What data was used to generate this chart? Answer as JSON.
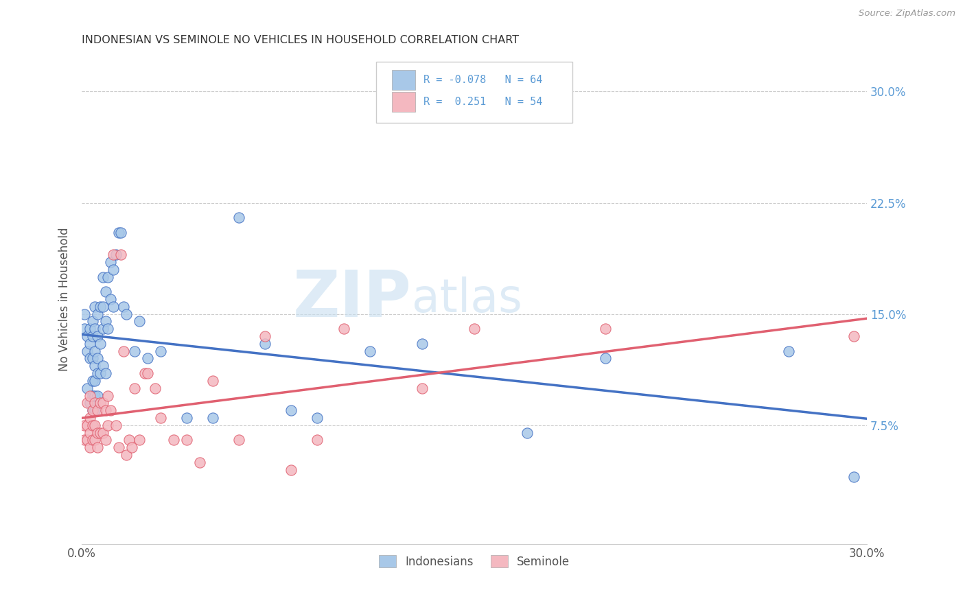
{
  "title": "INDONESIAN VS SEMINOLE NO VEHICLES IN HOUSEHOLD CORRELATION CHART",
  "source": "Source: ZipAtlas.com",
  "ylabel": "No Vehicles in Household",
  "yticks_labels": [
    "7.5%",
    "15.0%",
    "22.5%",
    "30.0%"
  ],
  "ytick_vals": [
    0.075,
    0.15,
    0.225,
    0.3
  ],
  "xlim": [
    0.0,
    0.3
  ],
  "ylim": [
    -0.005,
    0.325
  ],
  "color_indonesian": "#a8c8e8",
  "color_seminole": "#f4b8c0",
  "color_indonesian_line": "#4472c4",
  "color_seminole_line": "#e06070",
  "background_color": "#ffffff",
  "indonesian_x": [
    0.001,
    0.001,
    0.002,
    0.002,
    0.002,
    0.003,
    0.003,
    0.003,
    0.003,
    0.004,
    0.004,
    0.004,
    0.004,
    0.004,
    0.004,
    0.005,
    0.005,
    0.005,
    0.005,
    0.005,
    0.005,
    0.005,
    0.006,
    0.006,
    0.006,
    0.006,
    0.006,
    0.007,
    0.007,
    0.007,
    0.008,
    0.008,
    0.008,
    0.008,
    0.009,
    0.009,
    0.009,
    0.01,
    0.01,
    0.011,
    0.011,
    0.012,
    0.012,
    0.013,
    0.014,
    0.015,
    0.016,
    0.017,
    0.02,
    0.022,
    0.025,
    0.03,
    0.04,
    0.05,
    0.06,
    0.07,
    0.08,
    0.09,
    0.11,
    0.13,
    0.17,
    0.2,
    0.27,
    0.295
  ],
  "indonesian_y": [
    0.15,
    0.14,
    0.135,
    0.125,
    0.1,
    0.14,
    0.13,
    0.12,
    0.09,
    0.145,
    0.135,
    0.12,
    0.105,
    0.095,
    0.085,
    0.155,
    0.14,
    0.125,
    0.115,
    0.105,
    0.095,
    0.085,
    0.15,
    0.135,
    0.12,
    0.11,
    0.095,
    0.155,
    0.13,
    0.11,
    0.175,
    0.155,
    0.14,
    0.115,
    0.165,
    0.145,
    0.11,
    0.175,
    0.14,
    0.185,
    0.16,
    0.18,
    0.155,
    0.19,
    0.205,
    0.205,
    0.155,
    0.15,
    0.125,
    0.145,
    0.12,
    0.125,
    0.08,
    0.08,
    0.215,
    0.13,
    0.085,
    0.08,
    0.125,
    0.13,
    0.07,
    0.12,
    0.125,
    0.04
  ],
  "seminole_x": [
    0.001,
    0.001,
    0.002,
    0.002,
    0.002,
    0.003,
    0.003,
    0.003,
    0.003,
    0.004,
    0.004,
    0.004,
    0.005,
    0.005,
    0.005,
    0.006,
    0.006,
    0.006,
    0.007,
    0.007,
    0.008,
    0.008,
    0.009,
    0.009,
    0.01,
    0.01,
    0.011,
    0.012,
    0.013,
    0.014,
    0.015,
    0.016,
    0.017,
    0.018,
    0.019,
    0.02,
    0.022,
    0.024,
    0.025,
    0.028,
    0.03,
    0.035,
    0.04,
    0.045,
    0.05,
    0.06,
    0.07,
    0.08,
    0.09,
    0.1,
    0.13,
    0.15,
    0.2,
    0.295
  ],
  "seminole_y": [
    0.075,
    0.065,
    0.09,
    0.075,
    0.065,
    0.095,
    0.08,
    0.07,
    0.06,
    0.085,
    0.075,
    0.065,
    0.09,
    0.075,
    0.065,
    0.085,
    0.07,
    0.06,
    0.09,
    0.07,
    0.09,
    0.07,
    0.085,
    0.065,
    0.095,
    0.075,
    0.085,
    0.19,
    0.075,
    0.06,
    0.19,
    0.125,
    0.055,
    0.065,
    0.06,
    0.1,
    0.065,
    0.11,
    0.11,
    0.1,
    0.08,
    0.065,
    0.065,
    0.05,
    0.105,
    0.065,
    0.135,
    0.045,
    0.065,
    0.14,
    0.1,
    0.14,
    0.14,
    0.135
  ]
}
